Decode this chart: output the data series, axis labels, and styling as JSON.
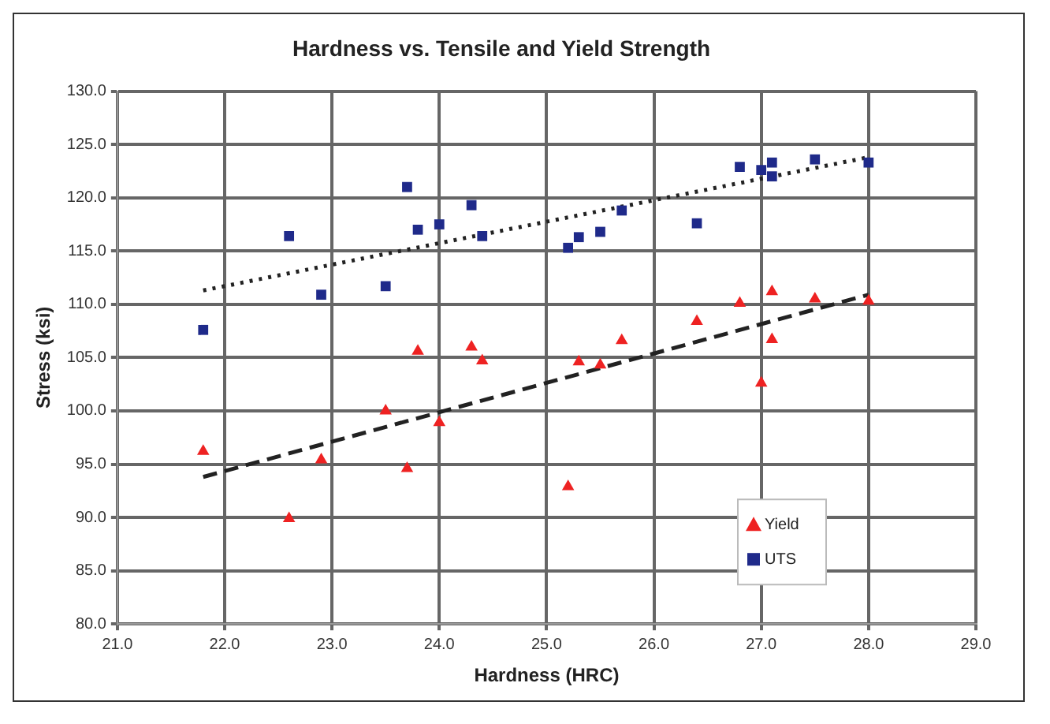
{
  "chart_data": {
    "type": "scatter",
    "title": "Hardness vs. Tensile and Yield Strength",
    "xlabel": "Hardness (HRC)",
    "ylabel": "Stress (ksi)",
    "xlim": [
      21,
      29
    ],
    "xticks": [
      {
        "value": 21,
        "label": "21.0"
      },
      {
        "value": 22,
        "label": "22.0"
      },
      {
        "value": 23,
        "label": "23.0"
      },
      {
        "value": 24,
        "label": "24.0"
      },
      {
        "value": 25,
        "label": "25.0"
      },
      {
        "value": 26,
        "label": "26.0"
      },
      {
        "value": 27,
        "label": "27.0"
      },
      {
        "value": 28,
        "label": "28.0"
      },
      {
        "value": 29,
        "label": "29.0"
      }
    ],
    "ylim": [
      80,
      130
    ],
    "yticks": [
      {
        "value": 80,
        "label": "80.0"
      },
      {
        "value": 85,
        "label": "85.0"
      },
      {
        "value": 90,
        "label": "90.0"
      },
      {
        "value": 95,
        "label": "95.0"
      },
      {
        "value": 100,
        "label": "100.0"
      },
      {
        "value": 105,
        "label": "105.0"
      },
      {
        "value": 110,
        "label": "110.0"
      },
      {
        "value": 115,
        "label": "115.0"
      },
      {
        "value": 120,
        "label": "120.0"
      },
      {
        "value": 125,
        "label": "125.0"
      },
      {
        "value": 130,
        "label": "130.0"
      }
    ],
    "grid": true,
    "legend": "bottom right",
    "series": [
      {
        "name": "Yield",
        "color": "#ee2222",
        "marker": "triangle",
        "x": [
          21.8,
          22.6,
          22.9,
          23.5,
          23.7,
          23.8,
          24.0,
          24.3,
          24.4,
          25.2,
          25.3,
          25.5,
          25.7,
          26.4,
          26.8,
          27.0,
          27.1,
          27.1,
          27.5,
          28.0
        ],
        "values": [
          96.2,
          89.9,
          95.4,
          100.0,
          94.6,
          105.6,
          98.9,
          106.0,
          104.7,
          92.9,
          104.6,
          104.3,
          106.6,
          108.4,
          110.1,
          102.6,
          111.2,
          106.7,
          110.5,
          110.3
        ]
      },
      {
        "name": "UTS",
        "color": "#1f2a8a",
        "marker": "square",
        "x": [
          21.8,
          22.6,
          22.9,
          23.5,
          23.7,
          23.8,
          24.0,
          24.3,
          24.4,
          25.2,
          25.3,
          25.5,
          25.7,
          26.4,
          26.8,
          27.0,
          27.1,
          27.1,
          27.5,
          28.0
        ],
        "values": [
          107.6,
          116.4,
          110.9,
          111.7,
          121.0,
          117.0,
          117.5,
          119.3,
          116.4,
          115.3,
          116.3,
          116.8,
          118.8,
          117.6,
          122.9,
          122.6,
          123.3,
          122.0,
          123.6,
          123.3
        ]
      },
      {
        "type": "line",
        "color": "#222222",
        "line_style": "dotted",
        "marker": "none",
        "x": [
          21.8,
          28.0
        ],
        "values": [
          111.3,
          123.8
        ]
      },
      {
        "type": "line",
        "color": "#222222",
        "line_style": "dashed",
        "marker": "none",
        "x": [
          21.8,
          28.0
        ],
        "values": [
          93.8,
          110.9
        ]
      }
    ]
  }
}
